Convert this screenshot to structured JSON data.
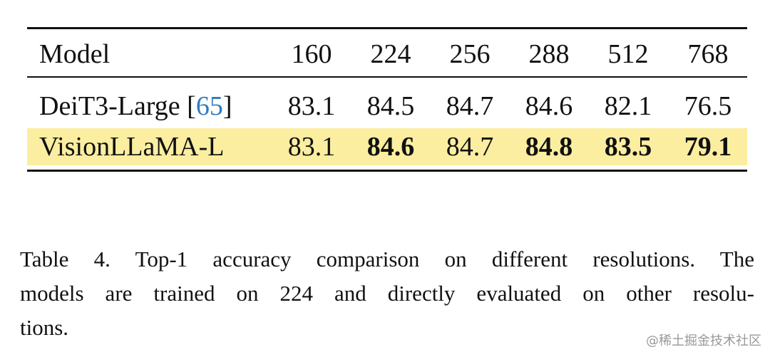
{
  "table": {
    "header": [
      "Model",
      "160",
      "224",
      "256",
      "288",
      "512",
      "768"
    ],
    "rows": [
      {
        "model": [
          "DeiT3-Large [",
          "65",
          "]"
        ],
        "cells": [
          "83.1",
          "84.5",
          "84.7",
          "84.6",
          "82.1",
          "76.5"
        ],
        "bold": [
          false,
          false,
          false,
          false,
          false,
          false
        ],
        "highlight": false
      },
      {
        "model": [
          "VisionLLaMA-L"
        ],
        "cells": [
          "83.1",
          "84.6",
          "84.7",
          "84.8",
          "83.5",
          "79.1"
        ],
        "bold": [
          false,
          true,
          false,
          true,
          true,
          true
        ],
        "highlight": true
      }
    ],
    "highlight_color": "#fbeea0",
    "citation_color": "#2f7bbf"
  },
  "caption": [
    "Table 4. Top-1 accuracy comparison on different resolutions. The",
    "models are trained on 224 and directly evaluated on other resolu-",
    "tions."
  ],
  "watermark": "@稀土掘金技术社区"
}
